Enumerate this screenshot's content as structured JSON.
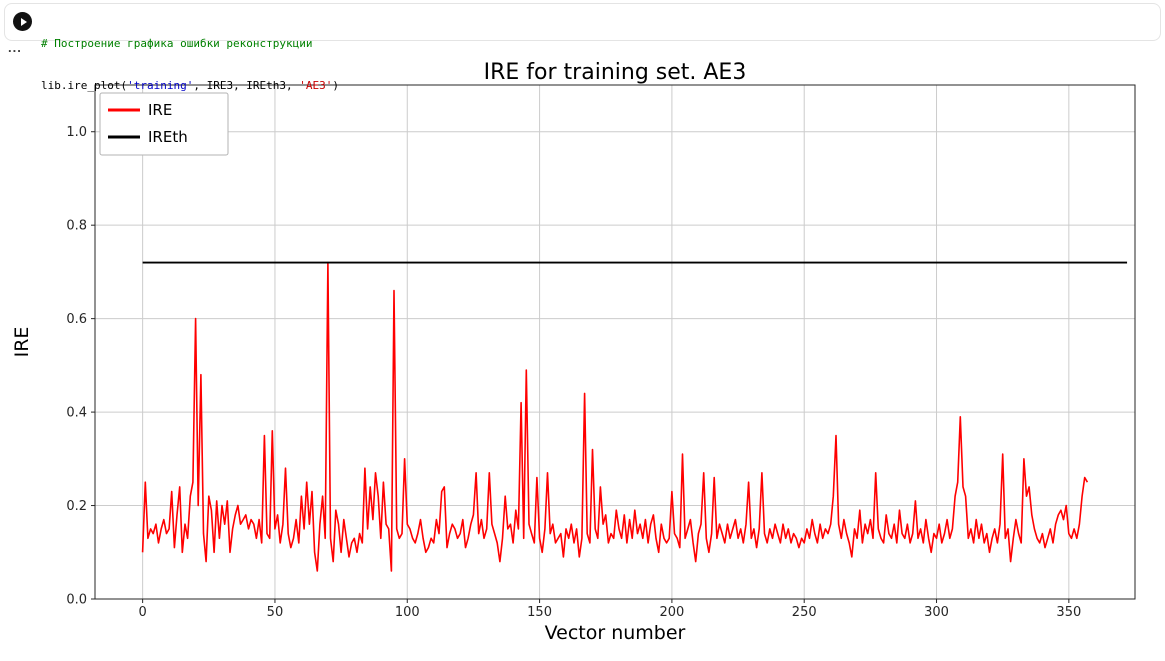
{
  "notebook": {
    "code": {
      "comment": "# Построение графика ошибки реконструкции",
      "comment_color": "#008000",
      "tokens": [
        {
          "text": "lib.ire_plot(",
          "color": "#000000"
        },
        {
          "text": "'training'",
          "color": "#0000c8"
        },
        {
          "text": ", IRE3, IREth3, ",
          "color": "#000000"
        },
        {
          "text": "'AE3'",
          "color": "#c80000"
        },
        {
          "text": ")",
          "color": "#000000"
        }
      ]
    },
    "output_toggle": "..."
  },
  "chart_data": {
    "type": "line",
    "title": "IRE for training set. AE3",
    "xlabel": "Vector number",
    "ylabel": "IRE",
    "xlim": [
      -18,
      375
    ],
    "ylim": [
      0,
      1.1
    ],
    "grid": true,
    "xticks": [
      0,
      50,
      100,
      150,
      200,
      250,
      300,
      350
    ],
    "xtick_labels": [
      "0",
      "50",
      "100",
      "150",
      "200",
      "250",
      "300",
      "350"
    ],
    "yticks": [
      0,
      0.2,
      0.4,
      0.6,
      0.8,
      1.0
    ],
    "ytick_labels": [
      "0.0",
      "0.2",
      "0.4",
      "0.6",
      "0.8",
      "1.0"
    ],
    "legend": {
      "position": "upper left",
      "entries": [
        {
          "label": "IRE",
          "color": "#ff0000"
        },
        {
          "label": "IREth",
          "color": "#000000"
        }
      ]
    },
    "colors": {
      "grid": "#cccccc",
      "axis": "#262626",
      "background": "#ffffff",
      "legend_border": "#b3b3b3"
    },
    "series": [
      {
        "name": "IRE",
        "type": "line",
        "color": "#ff0000",
        "x_start": 0,
        "x_step": 1,
        "values": [
          0.1,
          0.25,
          0.13,
          0.15,
          0.14,
          0.16,
          0.12,
          0.15,
          0.17,
          0.14,
          0.15,
          0.23,
          0.11,
          0.18,
          0.24,
          0.1,
          0.16,
          0.13,
          0.22,
          0.25,
          0.6,
          0.2,
          0.48,
          0.14,
          0.08,
          0.22,
          0.19,
          0.1,
          0.21,
          0.13,
          0.2,
          0.16,
          0.21,
          0.1,
          0.15,
          0.18,
          0.2,
          0.16,
          0.17,
          0.18,
          0.15,
          0.17,
          0.16,
          0.13,
          0.17,
          0.12,
          0.35,
          0.14,
          0.13,
          0.36,
          0.15,
          0.18,
          0.12,
          0.16,
          0.28,
          0.14,
          0.11,
          0.13,
          0.17,
          0.12,
          0.22,
          0.15,
          0.25,
          0.16,
          0.23,
          0.1,
          0.06,
          0.16,
          0.22,
          0.13,
          0.72,
          0.13,
          0.08,
          0.19,
          0.16,
          0.1,
          0.17,
          0.13,
          0.09,
          0.12,
          0.13,
          0.1,
          0.14,
          0.12,
          0.28,
          0.15,
          0.24,
          0.17,
          0.27,
          0.22,
          0.13,
          0.25,
          0.16,
          0.15,
          0.06,
          0.66,
          0.15,
          0.13,
          0.14,
          0.3,
          0.16,
          0.15,
          0.13,
          0.12,
          0.14,
          0.17,
          0.13,
          0.1,
          0.11,
          0.13,
          0.12,
          0.17,
          0.14,
          0.23,
          0.24,
          0.11,
          0.14,
          0.16,
          0.15,
          0.13,
          0.14,
          0.17,
          0.11,
          0.13,
          0.16,
          0.18,
          0.27,
          0.14,
          0.17,
          0.13,
          0.15,
          0.27,
          0.16,
          0.14,
          0.12,
          0.08,
          0.13,
          0.22,
          0.15,
          0.16,
          0.12,
          0.19,
          0.15,
          0.42,
          0.13,
          0.49,
          0.16,
          0.14,
          0.12,
          0.26,
          0.13,
          0.1,
          0.15,
          0.27,
          0.14,
          0.16,
          0.12,
          0.13,
          0.14,
          0.09,
          0.15,
          0.13,
          0.16,
          0.12,
          0.15,
          0.09,
          0.13,
          0.44,
          0.14,
          0.12,
          0.32,
          0.15,
          0.13,
          0.24,
          0.16,
          0.18,
          0.12,
          0.14,
          0.13,
          0.19,
          0.15,
          0.13,
          0.18,
          0.12,
          0.17,
          0.13,
          0.19,
          0.14,
          0.16,
          0.13,
          0.17,
          0.12,
          0.16,
          0.18,
          0.13,
          0.1,
          0.16,
          0.13,
          0.12,
          0.13,
          0.23,
          0.14,
          0.13,
          0.11,
          0.31,
          0.13,
          0.15,
          0.17,
          0.12,
          0.08,
          0.14,
          0.16,
          0.27,
          0.13,
          0.1,
          0.14,
          0.26,
          0.13,
          0.16,
          0.14,
          0.12,
          0.16,
          0.13,
          0.15,
          0.17,
          0.13,
          0.15,
          0.12,
          0.16,
          0.25,
          0.13,
          0.15,
          0.11,
          0.15,
          0.27,
          0.14,
          0.12,
          0.15,
          0.13,
          0.16,
          0.14,
          0.12,
          0.16,
          0.13,
          0.15,
          0.12,
          0.14,
          0.13,
          0.11,
          0.13,
          0.12,
          0.15,
          0.13,
          0.17,
          0.14,
          0.12,
          0.16,
          0.13,
          0.15,
          0.14,
          0.16,
          0.22,
          0.35,
          0.16,
          0.13,
          0.17,
          0.14,
          0.12,
          0.09,
          0.15,
          0.13,
          0.19,
          0.12,
          0.16,
          0.14,
          0.17,
          0.13,
          0.27,
          0.15,
          0.13,
          0.12,
          0.18,
          0.14,
          0.13,
          0.16,
          0.12,
          0.19,
          0.14,
          0.13,
          0.16,
          0.12,
          0.14,
          0.21,
          0.13,
          0.15,
          0.12,
          0.17,
          0.13,
          0.1,
          0.14,
          0.13,
          0.16,
          0.12,
          0.14,
          0.17,
          0.13,
          0.15,
          0.22,
          0.25,
          0.39,
          0.24,
          0.22,
          0.13,
          0.15,
          0.12,
          0.17,
          0.13,
          0.16,
          0.12,
          0.14,
          0.1,
          0.13,
          0.15,
          0.12,
          0.16,
          0.31,
          0.13,
          0.15,
          0.08,
          0.13,
          0.17,
          0.14,
          0.12,
          0.3,
          0.22,
          0.24,
          0.18,
          0.15,
          0.13,
          0.12,
          0.14,
          0.11,
          0.13,
          0.15,
          0.12,
          0.16,
          0.18,
          0.19,
          0.17,
          0.2,
          0.14,
          0.13,
          0.15,
          0.13,
          0.16,
          0.22,
          0.26,
          0.25
        ]
      },
      {
        "name": "IREth",
        "type": "hline",
        "color": "#000000",
        "value": 0.72,
        "x_range": [
          0,
          372
        ]
      }
    ]
  }
}
